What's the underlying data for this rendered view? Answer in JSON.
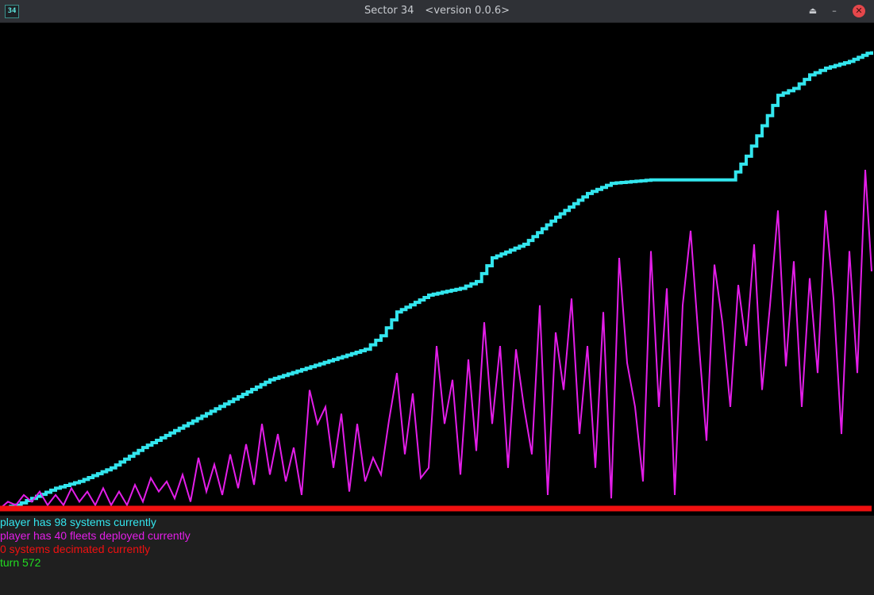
{
  "window": {
    "icon_text": "34",
    "title": "Sector 34",
    "version": "<version 0.0.6>",
    "buttons": {
      "shade": "⏏",
      "minimize": "–",
      "close": "✕"
    }
  },
  "colors": {
    "background": "#000000",
    "systems": "#33e6ee",
    "fleets": "#e31ee8",
    "decimated": "#f01010",
    "turn": "#22dd22",
    "status_bg": "#1f1f1f"
  },
  "status": {
    "systems_line": "player has 98 systems currently",
    "fleets_line": "player has 40 fleets deployed currently",
    "decimated_line": "0 systems decimated currently",
    "turn_line": "turn 572"
  },
  "chart_data": {
    "type": "line",
    "x_range": [
      0,
      572
    ],
    "y_range": [
      0,
      105
    ],
    "series": [
      {
        "color": "#33e6ee",
        "values_at_turn": [
          [
            0,
            0
          ],
          [
            20,
            1
          ],
          [
            40,
            3
          ],
          [
            70,
            6
          ],
          [
            100,
            8
          ],
          [
            140,
            12
          ],
          [
            180,
            18
          ],
          [
            220,
            23
          ],
          [
            260,
            28
          ],
          [
            300,
            33
          ],
          [
            340,
            38
          ],
          [
            380,
            41
          ],
          [
            420,
            44
          ],
          [
            460,
            47
          ],
          [
            480,
            51
          ],
          [
            500,
            58
          ],
          [
            540,
            63
          ],
          [
            580,
            65
          ],
          [
            600,
            67
          ],
          [
            620,
            74
          ],
          [
            660,
            78
          ],
          [
            700,
            86
          ],
          [
            740,
            93
          ],
          [
            770,
            96
          ],
          [
            820,
            97
          ],
          [
            920,
            97
          ],
          [
            940,
            104
          ],
          [
            960,
            113
          ],
          [
            980,
            122
          ],
          [
            1000,
            124
          ],
          [
            1020,
            128
          ],
          [
            1040,
            130
          ],
          [
            1070,
            132
          ],
          [
            1098,
            135
          ]
        ]
      },
      {
        "color": "#e31ee8",
        "values_at_turn": [
          [
            0,
            0
          ],
          [
            10,
            2
          ],
          [
            20,
            1
          ],
          [
            30,
            4
          ],
          [
            40,
            2
          ],
          [
            50,
            5
          ],
          [
            60,
            1
          ],
          [
            70,
            4
          ],
          [
            80,
            1
          ],
          [
            90,
            6
          ],
          [
            100,
            2
          ],
          [
            110,
            5
          ],
          [
            120,
            1
          ],
          [
            130,
            6
          ],
          [
            140,
            1
          ],
          [
            150,
            5
          ],
          [
            160,
            1
          ],
          [
            170,
            7
          ],
          [
            180,
            2
          ],
          [
            190,
            9
          ],
          [
            200,
            5
          ],
          [
            210,
            8
          ],
          [
            220,
            3
          ],
          [
            230,
            10
          ],
          [
            240,
            2
          ],
          [
            250,
            15
          ],
          [
            260,
            5
          ],
          [
            270,
            13
          ],
          [
            280,
            4
          ],
          [
            290,
            16
          ],
          [
            300,
            6
          ],
          [
            310,
            19
          ],
          [
            320,
            7
          ],
          [
            330,
            25
          ],
          [
            340,
            10
          ],
          [
            350,
            22
          ],
          [
            360,
            8
          ],
          [
            370,
            18
          ],
          [
            380,
            4
          ],
          [
            390,
            35
          ],
          [
            400,
            25
          ],
          [
            410,
            30
          ],
          [
            420,
            12
          ],
          [
            430,
            28
          ],
          [
            440,
            5
          ],
          [
            450,
            25
          ],
          [
            460,
            8
          ],
          [
            470,
            15
          ],
          [
            480,
            10
          ],
          [
            490,
            26
          ],
          [
            500,
            40
          ],
          [
            510,
            16
          ],
          [
            520,
            34
          ],
          [
            530,
            9
          ],
          [
            540,
            12
          ],
          [
            550,
            48
          ],
          [
            560,
            25
          ],
          [
            570,
            38
          ],
          [
            580,
            10
          ],
          [
            590,
            44
          ],
          [
            600,
            17
          ],
          [
            610,
            55
          ],
          [
            620,
            25
          ],
          [
            630,
            48
          ],
          [
            640,
            12
          ],
          [
            650,
            47
          ],
          [
            660,
            30
          ],
          [
            670,
            16
          ],
          [
            680,
            60
          ],
          [
            690,
            4
          ],
          [
            700,
            52
          ],
          [
            710,
            35
          ],
          [
            720,
            62
          ],
          [
            730,
            22
          ],
          [
            740,
            48
          ],
          [
            750,
            12
          ],
          [
            760,
            58
          ],
          [
            770,
            3
          ],
          [
            780,
            74
          ],
          [
            790,
            43
          ],
          [
            800,
            30
          ],
          [
            810,
            8
          ],
          [
            820,
            76
          ],
          [
            830,
            30
          ],
          [
            840,
            65
          ],
          [
            850,
            4
          ],
          [
            860,
            60
          ],
          [
            870,
            82
          ],
          [
            880,
            50
          ],
          [
            890,
            20
          ],
          [
            900,
            72
          ],
          [
            910,
            55
          ],
          [
            920,
            30
          ],
          [
            930,
            66
          ],
          [
            940,
            48
          ],
          [
            950,
            78
          ],
          [
            960,
            35
          ],
          [
            970,
            60
          ],
          [
            980,
            88
          ],
          [
            990,
            42
          ],
          [
            1000,
            73
          ],
          [
            1010,
            30
          ],
          [
            1020,
            68
          ],
          [
            1030,
            40
          ],
          [
            1040,
            88
          ],
          [
            1050,
            62
          ],
          [
            1060,
            22
          ],
          [
            1070,
            76
          ],
          [
            1080,
            40
          ],
          [
            1090,
            100
          ],
          [
            1098,
            70
          ]
        ]
      },
      {
        "color": "#f01010",
        "values_at_turn": [
          [
            0,
            0
          ],
          [
            1098,
            0
          ]
        ]
      }
    ],
    "x_domain_note": "",
    "grid": false,
    "legend": "none"
  }
}
